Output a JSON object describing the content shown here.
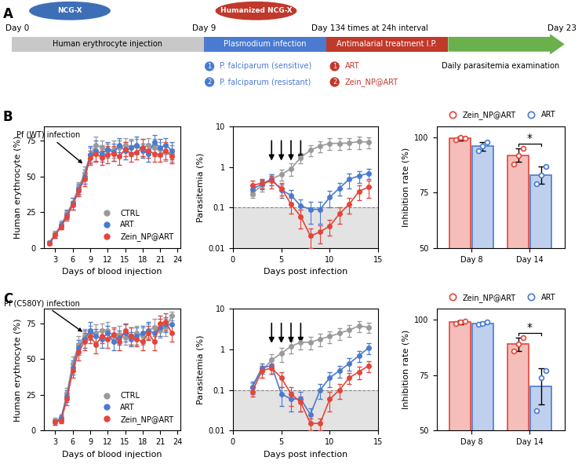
{
  "panel_labels": [
    "A",
    "B",
    "C"
  ],
  "diagram": {
    "mice": [
      {
        "text": "NCG-X",
        "color": "#3d6fb6"
      },
      {
        "text": "Humanized NCG-X",
        "color": "#c0392b"
      }
    ],
    "days": [
      "Day 0",
      "Day 9",
      "Day 13",
      "Day 23"
    ],
    "stages": [
      {
        "text": "Human erythrocyte injection",
        "color": "#c8c8c8"
      },
      {
        "text": "Plasmodium infection",
        "color": "#4a7bd0"
      },
      {
        "text": "Antimalarial treatment I.P.",
        "color": "#c0392b"
      },
      {
        "text": "Daily parasitemia examination",
        "color": "#6ab04c"
      }
    ],
    "schedule": "4 times at 24h interval",
    "infection_options": [
      {
        "number": "1",
        "text": "P. falciparum (sensitive)"
      },
      {
        "number": "2",
        "text": "P. falciparum (resistant)"
      }
    ],
    "treatment_options": [
      {
        "number": "1",
        "text": "ART"
      },
      {
        "number": "2",
        "text": "Zein_NP@ART"
      }
    ]
  },
  "chart_data": [
    {
      "type": "line",
      "x_label": "Days of blood injection",
      "y_label": "Human erythrocyte (%)",
      "x": [
        2,
        3,
        4,
        5,
        6,
        7,
        8,
        9,
        10,
        11,
        12,
        13,
        14,
        15,
        16,
        17,
        18,
        19,
        20,
        21,
        22,
        23
      ],
      "series": [
        {
          "name": "CTRL",
          "color": "#9a9a9a",
          "values": [
            4,
            10,
            16,
            24,
            32,
            42,
            52,
            65,
            72,
            70,
            68,
            69,
            70,
            72,
            70,
            71,
            70,
            72,
            70,
            69,
            67,
            66
          ],
          "errors": [
            1,
            2,
            3,
            3,
            3,
            4,
            5,
            5,
            6,
            5,
            5,
            6,
            5,
            5,
            6,
            5,
            6,
            5,
            6,
            5,
            6,
            6
          ]
        },
        {
          "name": "ART",
          "color": "#4a7bd0",
          "values": [
            4,
            9,
            16,
            23,
            31,
            41,
            50,
            65,
            68,
            66,
            69,
            67,
            72,
            68,
            70,
            72,
            68,
            66,
            74,
            70,
            72,
            68
          ],
          "errors": [
            1,
            2,
            2,
            3,
            4,
            4,
            5,
            6,
            7,
            6,
            5,
            6,
            5,
            6,
            5,
            6,
            5,
            6,
            5,
            6,
            5,
            6
          ]
        },
        {
          "name": "Zein_NP@ART",
          "color": "#e5453a",
          "values": [
            3,
            9,
            15,
            22,
            30,
            40,
            48,
            63,
            66,
            63,
            65,
            66,
            64,
            69,
            66,
            67,
            70,
            68,
            66,
            65,
            68,
            64
          ],
          "errors": [
            1,
            2,
            2,
            3,
            3,
            4,
            5,
            5,
            6,
            5,
            6,
            5,
            6,
            5,
            6,
            5,
            6,
            5,
            6,
            5,
            6,
            5
          ]
        }
      ],
      "xlim": [
        1,
        24.5
      ],
      "ylim": [
        0,
        85
      ],
      "xticks": [
        3,
        6,
        9,
        12,
        15,
        18,
        21,
        24
      ],
      "yticks": [
        0,
        25,
        50,
        75
      ],
      "annotation": {
        "text": "Pf (WT) infection",
        "x": 8,
        "y": 58
      },
      "legend": "lower right"
    },
    {
      "type": "line",
      "x_label": "Days post infection",
      "y_label": "Parasitemia (%)",
      "log": "y",
      "x": [
        2,
        3,
        4,
        5,
        6,
        7,
        8,
        9,
        10,
        11,
        12,
        13,
        14
      ],
      "series": [
        {
          "name": "CTRL",
          "color": "#9a9a9a",
          "values": [
            0.22,
            0.35,
            0.5,
            0.65,
            0.9,
            1.7,
            2.6,
            3.3,
            3.8,
            3.8,
            3.9,
            4.2,
            4.1
          ],
          "errors": [
            0.05,
            0.1,
            0.15,
            0.2,
            0.3,
            0.5,
            0.8,
            1.0,
            1.2,
            1.2,
            1.2,
            1.5,
            1.3
          ]
        },
        {
          "name": "ART",
          "color": "#4a7bd0",
          "values": [
            0.28,
            0.38,
            0.5,
            0.27,
            0.2,
            0.11,
            0.09,
            0.09,
            0.18,
            0.3,
            0.5,
            0.6,
            0.7
          ],
          "errors": [
            0.08,
            0.1,
            0.15,
            0.1,
            0.07,
            0.05,
            0.05,
            0.05,
            0.08,
            0.1,
            0.2,
            0.2,
            0.2
          ]
        },
        {
          "name": "Zein_NP@ART",
          "color": "#e5453a",
          "values": [
            0.35,
            0.4,
            0.45,
            0.3,
            0.12,
            0.06,
            0.02,
            0.025,
            0.035,
            0.07,
            0.12,
            0.25,
            0.32
          ],
          "errors": [
            0.1,
            0.1,
            0.15,
            0.1,
            0.05,
            0.03,
            0.01,
            0.012,
            0.015,
            0.03,
            0.05,
            0.1,
            0.15
          ]
        }
      ],
      "xlim": [
        0,
        15
      ],
      "ylim": [
        0.01,
        10
      ],
      "xticks": [
        0,
        5,
        10,
        15
      ],
      "yticks": [
        0.01,
        0.1,
        1,
        10
      ],
      "threshold": 0.1,
      "treatment_days": [
        4,
        5,
        6,
        7
      ]
    },
    {
      "type": "bar",
      "y_label": "Inhibition rate (%)",
      "categories": [
        "Day 8",
        "Day 14"
      ],
      "series": [
        {
          "name": "Zein_NP@ART",
          "color": "#e5453a",
          "values": [
            99.5,
            92
          ],
          "errors": [
            0.8,
            3
          ],
          "points": [
            [
              99,
              100,
              99.5
            ],
            [
              88,
              92,
              95
            ]
          ]
        },
        {
          "name": "ART",
          "color": "#4a7bd0",
          "values": [
            96,
            83
          ],
          "errors": [
            2,
            4
          ],
          "points": [
            [
              94,
              96,
              98
            ],
            [
              79,
              83,
              87
            ]
          ]
        }
      ],
      "ylim": [
        50,
        105
      ],
      "yticks": [
        50,
        75,
        100
      ],
      "legend": "top",
      "significance": [
        {
          "category": "Day 14",
          "label": "*"
        }
      ]
    },
    {
      "type": "line",
      "x_label": "Days of blood injection",
      "y_label": "Human erythrocyte (%)",
      "x": [
        3,
        4,
        5,
        6,
        7,
        8,
        9,
        10,
        11,
        12,
        13,
        14,
        15,
        16,
        17,
        18,
        19,
        20,
        21,
        22,
        23
      ],
      "series": [
        {
          "name": "CTRL",
          "color": "#9a9a9a",
          "values": [
            7,
            8,
            26,
            47,
            60,
            66,
            68,
            68,
            70,
            70,
            66,
            67,
            65,
            66,
            68,
            66,
            70,
            72,
            70,
            72,
            80
          ],
          "errors": [
            2,
            2,
            4,
            5,
            6,
            5,
            5,
            6,
            5,
            6,
            5,
            6,
            5,
            6,
            5,
            6,
            5,
            6,
            5,
            6,
            3
          ]
        },
        {
          "name": "ART",
          "color": "#4a7bd0",
          "values": [
            6,
            9,
            24,
            44,
            58,
            64,
            70,
            66,
            64,
            68,
            62,
            65,
            68,
            64,
            66,
            68,
            70,
            68,
            72,
            74,
            74
          ],
          "errors": [
            2,
            2,
            4,
            5,
            5,
            6,
            6,
            5,
            6,
            5,
            6,
            5,
            6,
            5,
            6,
            5,
            6,
            5,
            6,
            5,
            6
          ]
        },
        {
          "name": "Zein_NP@ART",
          "color": "#e5453a",
          "values": [
            6,
            7,
            22,
            42,
            55,
            62,
            66,
            60,
            66,
            64,
            67,
            62,
            70,
            66,
            64,
            62,
            68,
            62,
            75,
            76,
            68
          ],
          "errors": [
            2,
            2,
            4,
            5,
            6,
            6,
            5,
            6,
            5,
            6,
            5,
            6,
            5,
            6,
            5,
            6,
            5,
            6,
            5,
            6,
            6
          ]
        }
      ],
      "xlim": [
        1,
        24.5
      ],
      "ylim": [
        0,
        85
      ],
      "xticks": [
        3,
        6,
        9,
        12,
        15,
        18,
        21,
        24
      ],
      "yticks": [
        0,
        25,
        50,
        75
      ],
      "annotation": {
        "text": "Pf (C580Y) infection",
        "x": 8,
        "y": 68
      },
      "legend": "lower right"
    },
    {
      "type": "line",
      "x_label": "Days post infection",
      "y_label": "Parasitemia (%)",
      "log": "y",
      "x": [
        2,
        3,
        4,
        5,
        6,
        7,
        8,
        9,
        10,
        11,
        12,
        13,
        14
      ],
      "series": [
        {
          "name": "CTRL",
          "color": "#9a9a9a",
          "values": [
            0.12,
            0.3,
            0.55,
            0.8,
            1.2,
            1.5,
            1.5,
            1.8,
            2.1,
            2.5,
            3,
            3.8,
            3.5
          ],
          "errors": [
            0.03,
            0.1,
            0.2,
            0.3,
            0.4,
            0.5,
            0.5,
            0.6,
            0.7,
            0.8,
            1.0,
            1.1,
            1.0
          ]
        },
        {
          "name": "ART",
          "color": "#4a7bd0",
          "values": [
            0.12,
            0.35,
            0.4,
            0.08,
            0.06,
            0.06,
            0.025,
            0.1,
            0.2,
            0.3,
            0.45,
            0.7,
            1.1
          ],
          "errors": [
            0.04,
            0.1,
            0.15,
            0.04,
            0.03,
            0.03,
            0.01,
            0.04,
            0.08,
            0.1,
            0.15,
            0.2,
            0.35
          ]
        },
        {
          "name": "Zein_NP@ART",
          "color": "#e5453a",
          "values": [
            0.09,
            0.3,
            0.35,
            0.2,
            0.08,
            0.05,
            0.015,
            0.015,
            0.06,
            0.1,
            0.2,
            0.28,
            0.4
          ],
          "errors": [
            0.02,
            0.1,
            0.1,
            0.08,
            0.04,
            0.02,
            0.005,
            0.005,
            0.03,
            0.04,
            0.06,
            0.1,
            0.12
          ]
        }
      ],
      "xlim": [
        0,
        15
      ],
      "ylim": [
        0.01,
        10
      ],
      "xticks": [
        0,
        5,
        10,
        15
      ],
      "yticks": [
        0.01,
        0.1,
        1,
        10
      ],
      "threshold": 0.1,
      "treatment_days": [
        4,
        5,
        6,
        7
      ]
    },
    {
      "type": "bar",
      "y_label": "Inhibition rate (%)",
      "categories": [
        "Day 8",
        "Day 14"
      ],
      "series": [
        {
          "name": "Zein_NP@ART",
          "color": "#e5453a",
          "values": [
            99,
            89
          ],
          "errors": [
            0.8,
            3
          ],
          "points": [
            [
              98.5,
              99,
              99.5
            ],
            [
              86,
              89,
              92
            ]
          ]
        },
        {
          "name": "ART",
          "color": "#4a7bd0",
          "values": [
            98.5,
            70
          ],
          "errors": [
            0.5,
            8
          ],
          "points": [
            [
              98,
              98.5,
              99
            ],
            [
              59,
              74,
              77
            ]
          ]
        }
      ],
      "ylim": [
        50,
        105
      ],
      "yticks": [
        50,
        75,
        100
      ],
      "legend": "top",
      "significance": [
        {
          "category": "Day 14",
          "label": "*"
        }
      ]
    }
  ]
}
